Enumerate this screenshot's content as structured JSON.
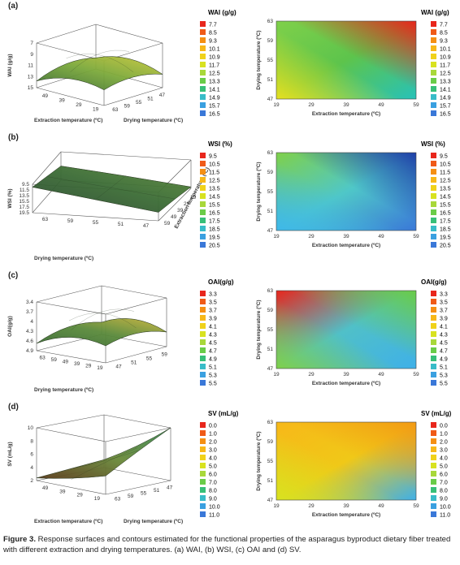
{
  "chart_data": [
    {
      "panel": "(a)",
      "type": "surface",
      "legend_title": "WAI (g/g)",
      "legend": [
        "7.7",
        "8.5",
        "9.3",
        "10.1",
        "10.9",
        "11.7",
        "12.5",
        "13.3",
        "14.1",
        "14.9",
        "15.7",
        "16.5"
      ],
      "surface": {
        "zlabel": "WAI (g/g)",
        "zticks": [
          "7",
          "9",
          "11",
          "13",
          "15"
        ],
        "xlabel": "Extraction temperature (ºC)",
        "xticks": [
          "49",
          "39",
          "29",
          "19"
        ],
        "ylabel": "Drying temperature (ºC)",
        "yticks": [
          "63",
          "59",
          "55",
          "51",
          "47"
        ]
      },
      "contour": {
        "ylabel": "Drying temperature (ºC)",
        "yticks": [
          "63",
          "59",
          "55",
          "51",
          "47"
        ],
        "xlabel": "Extraction temperature (ºC)",
        "xticks": [
          "19",
          "29",
          "39",
          "49",
          "59"
        ],
        "corners": {
          "tl": "#7fd04a",
          "tr": "#e8261c",
          "bl": "#e6e020",
          "br": "#27c2b8",
          "c": "#5dc44c"
        }
      }
    },
    {
      "panel": "(b)",
      "type": "surface",
      "legend_title": "WSI (%)",
      "legend": [
        "9.5",
        "10.5",
        "11.5",
        "12.5",
        "13.5",
        "14.5",
        "15.5",
        "16.5",
        "17.5",
        "18.5",
        "19.5",
        "20.5"
      ],
      "surface": {
        "zlabel": "WSI (%)",
        "zticks": [
          "19.5",
          "17.5",
          "15.5",
          "13.5",
          "11.5",
          "9.5"
        ],
        "xlabel": "Drying temperature (ºC)",
        "xticks": [
          "63",
          "59",
          "55",
          "51",
          "47"
        ],
        "ylabel": "Extraction temperature (ºC)",
        "yticks": [
          "59",
          "49",
          "39",
          "29",
          "19"
        ]
      },
      "contour": {
        "ylabel": "Drying temperature (ºC)",
        "yticks": [
          "63",
          "59",
          "55",
          "51",
          "47"
        ],
        "xlabel": "Extraction temperature (ºC)",
        "xticks": [
          "19",
          "29",
          "39",
          "49",
          "59"
        ],
        "corners": {
          "tl": "#7fd04a",
          "tr": "#1f3fa8",
          "bl": "#3fb8e8",
          "br": "#3a78d8",
          "c": "#4fc7c8"
        }
      }
    },
    {
      "panel": "(c)",
      "type": "surface",
      "legend_title": "OAI(g/g)",
      "legend": [
        "3.3",
        "3.5",
        "3.7",
        "3.9",
        "4.1",
        "4.3",
        "4.5",
        "4.7",
        "4.9",
        "5.1",
        "5.3",
        "5.5"
      ],
      "surface": {
        "zlabel": "OAI(g/g)",
        "zticks": [
          "4.9",
          "4.6",
          "4.3",
          "4",
          "3.7",
          "3.4"
        ],
        "xlabel": "Drying temperature (ºC)",
        "xticks": [
          "63",
          "59",
          "49",
          "39",
          "29",
          "19"
        ],
        "ylabel": "",
        "yticks": [
          "47",
          "51",
          "55",
          "59"
        ]
      },
      "contour": {
        "ylabel": "Drying temperature (ºC)",
        "yticks": [
          "63",
          "59",
          "55",
          "51",
          "47"
        ],
        "xlabel": "Extraction temperature (ºC)",
        "xticks": [
          "19",
          "29",
          "39",
          "49",
          "59"
        ],
        "corners": {
          "tl": "#e8261c",
          "tr": "#6acc48",
          "bl": "#7fd04a",
          "br": "#3fb0e8",
          "c": "#50c0c8"
        }
      }
    },
    {
      "panel": "(d)",
      "type": "surface",
      "legend_title": "SV (mL/g)",
      "legend": [
        "0.0",
        "1.0",
        "2.0",
        "3.0",
        "4.0",
        "5.0",
        "6.0",
        "7.0",
        "8.0",
        "9.0",
        "10.0",
        "11.0"
      ],
      "surface": {
        "zlabel": "SV (mL/g)",
        "zticks": [
          "10",
          "8",
          "6",
          "4",
          "2"
        ],
        "xlabel": "Extraction temperature (ºC)",
        "xticks": [
          "49",
          "39",
          "29",
          "19"
        ],
        "ylabel": "Drying temperature (ºC)",
        "yticks": [
          "63",
          "59",
          "55",
          "51",
          "47"
        ]
      },
      "contour": {
        "ylabel": "Drying temperature (ºC)",
        "yticks": [
          "63",
          "59",
          "55",
          "51",
          "47"
        ],
        "xlabel": "Extraction temperature (ºC)",
        "xticks": [
          "19",
          "29",
          "39",
          "49",
          "59"
        ],
        "corners": {
          "tl": "#f7b819",
          "tr": "#f39a14",
          "bl": "#d8e220",
          "br": "#3fb0e8",
          "c": "#f0c818"
        }
      }
    }
  ],
  "legend_colors": [
    "#e8261c",
    "#f05a17",
    "#f58f13",
    "#f7b819",
    "#f0d21a",
    "#d8e220",
    "#a8d83a",
    "#6acc48",
    "#38bf78",
    "#38bcc8",
    "#3aa0e0",
    "#3a78d8"
  ],
  "caption": {
    "figure": "Figure 3.",
    "text": " Response surfaces and contours estimated for the functional properties of the asparagus byproduct dietary fiber treated with different extraction and drying temperatures. (a) WAI, (b) WSI, (c) OAI and (d) SV."
  }
}
